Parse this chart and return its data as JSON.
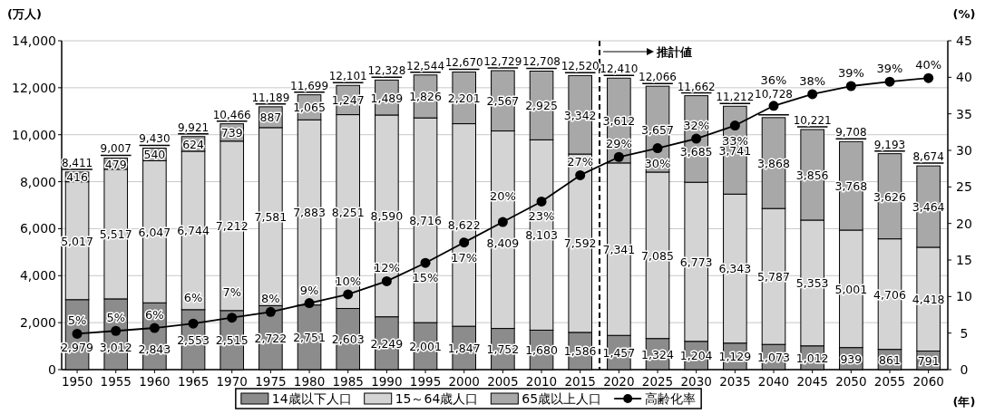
{
  "chart_data": {
    "type": "bar",
    "stacked": true,
    "x": [
      1950,
      1955,
      1960,
      1965,
      1970,
      1975,
      1980,
      1985,
      1990,
      1995,
      2000,
      2005,
      2010,
      2015,
      2020,
      2025,
      2030,
      2035,
      2040,
      2045,
      2050,
      2055,
      2060
    ],
    "xlim": [
      1948,
      2062.5
    ],
    "xticks": [
      1950,
      1955,
      1960,
      1965,
      1970,
      1975,
      1980,
      1985,
      1990,
      1995,
      2000,
      2005,
      2010,
      2015,
      2020,
      2025,
      2030,
      2035,
      2040,
      2045,
      2050,
      2055,
      2060
    ],
    "ylim": [
      0,
      14000
    ],
    "yticks": [
      0,
      {
        "value": 2000,
        "label": "2,000"
      },
      {
        "value": 4000,
        "label": "4,000"
      },
      {
        "value": 6000,
        "label": "6,000"
      },
      {
        "value": 8000,
        "label": "8,000"
      },
      {
        "value": 10000,
        "label": "10,000"
      },
      {
        "value": 12000,
        "label": "12,000"
      },
      {
        "value": 14000,
        "label": "14,000"
      }
    ],
    "y2lim": [
      0,
      45
    ],
    "y2ticks": [
      0,
      5,
      10,
      15,
      20,
      25,
      30,
      35,
      40,
      45
    ],
    "ylabel": "(万人)",
    "y2label": "(%)",
    "xlabel": "(年)",
    "grid": "y",
    "legend": "bottom",
    "series": [
      {
        "name": "14歳以下人口",
        "color": "#8c8c8c",
        "values": [
          2979,
          3012,
          2843,
          2553,
          2515,
          2722,
          2751,
          2603,
          2249,
          2001,
          1847,
          1752,
          1680,
          1586,
          1457,
          1324,
          1204,
          1129,
          1073,
          1012,
          939,
          861,
          791
        ],
        "value_labels": [
          "2,979",
          "3,012",
          "2,843",
          "2,553",
          "2,515",
          "2,722",
          "2,751",
          "2,603",
          "2,249",
          "2,001",
          "1,847",
          "1,752",
          "1,680",
          "1,586",
          "1,457",
          "1,324",
          "1,204",
          "1,129",
          "1,073",
          "1,012",
          "939",
          "861",
          "791"
        ]
      },
      {
        "name": "15～64歳人口",
        "color": "#d4d4d4",
        "values": [
          5017,
          5517,
          6047,
          6744,
          7212,
          7581,
          7883,
          8251,
          8590,
          8716,
          8622,
          8409,
          8103,
          7592,
          7341,
          7085,
          6773,
          6343,
          5787,
          5353,
          5001,
          4706,
          4418
        ],
        "value_labels": [
          "5,017",
          "5,517",
          "6,047",
          "6,744",
          "7,212",
          "7,581",
          "7,883",
          "8,251",
          "8,590",
          "8,716",
          "8,622",
          "8,409",
          "8,103",
          "7,592",
          "7,341",
          "7,085",
          "6,773",
          "6,343",
          "5,787",
          "5,353",
          "5,001",
          "4,706",
          "4,418"
        ]
      },
      {
        "name": "65歳以上人口",
        "color": "#a8a8a8",
        "values": [
          416,
          479,
          540,
          624,
          739,
          887,
          1065,
          1247,
          1489,
          1826,
          2201,
          2567,
          2925,
          3342,
          3612,
          3657,
          3685,
          3741,
          3868,
          3856,
          3768,
          3626,
          3464
        ],
        "value_labels": [
          "416",
          "479",
          "540",
          "624",
          "739",
          "887",
          "1,065",
          "1,247",
          "1,489",
          "1,826",
          "2,201",
          "2,567",
          "2,925",
          "3,342",
          "3,612",
          "3,657",
          "3,685",
          "3,741",
          "3,868",
          "3,856",
          "3,768",
          "3,626",
          "3,464"
        ]
      },
      {
        "name": "高齢化率",
        "type": "line",
        "axis": "y2",
        "color": "#000000",
        "marker": "circle",
        "line_style": "solid",
        "values": [
          4.9,
          5.3,
          5.7,
          6.3,
          7.1,
          7.9,
          9.1,
          10.3,
          12.1,
          14.6,
          17.4,
          20.2,
          23.0,
          26.6,
          29.1,
          30.3,
          31.6,
          33.4,
          36.1,
          37.7,
          38.8,
          39.4,
          39.9
        ],
        "value_labels": [
          "5%",
          "5%",
          "6%",
          "6%",
          "7%",
          "8%",
          "9%",
          "10%",
          "12%",
          "15%",
          "17%",
          "20%",
          "23%",
          "27%",
          "29%",
          "30%",
          "32%",
          "33%",
          "36%",
          "38%",
          "39%",
          "39%",
          "40%"
        ]
      }
    ],
    "totals": [
      "8,411",
      "9,007",
      "9,430",
      "9,921",
      "10,466",
      "11,189",
      "11,699",
      "12,101",
      "12,328",
      "12,544",
      "12,670",
      "12,729",
      "12,708",
      "12,520",
      "12,410",
      "12,066",
      "11,662",
      "11,212",
      "10,728",
      "10,221",
      "9,708",
      "9,193",
      "8,674"
    ],
    "ref_lines": [
      {
        "axis": "x",
        "value": 2017.5,
        "label": "推計値",
        "line_style": "dashed",
        "color": "#000000"
      }
    ]
  }
}
